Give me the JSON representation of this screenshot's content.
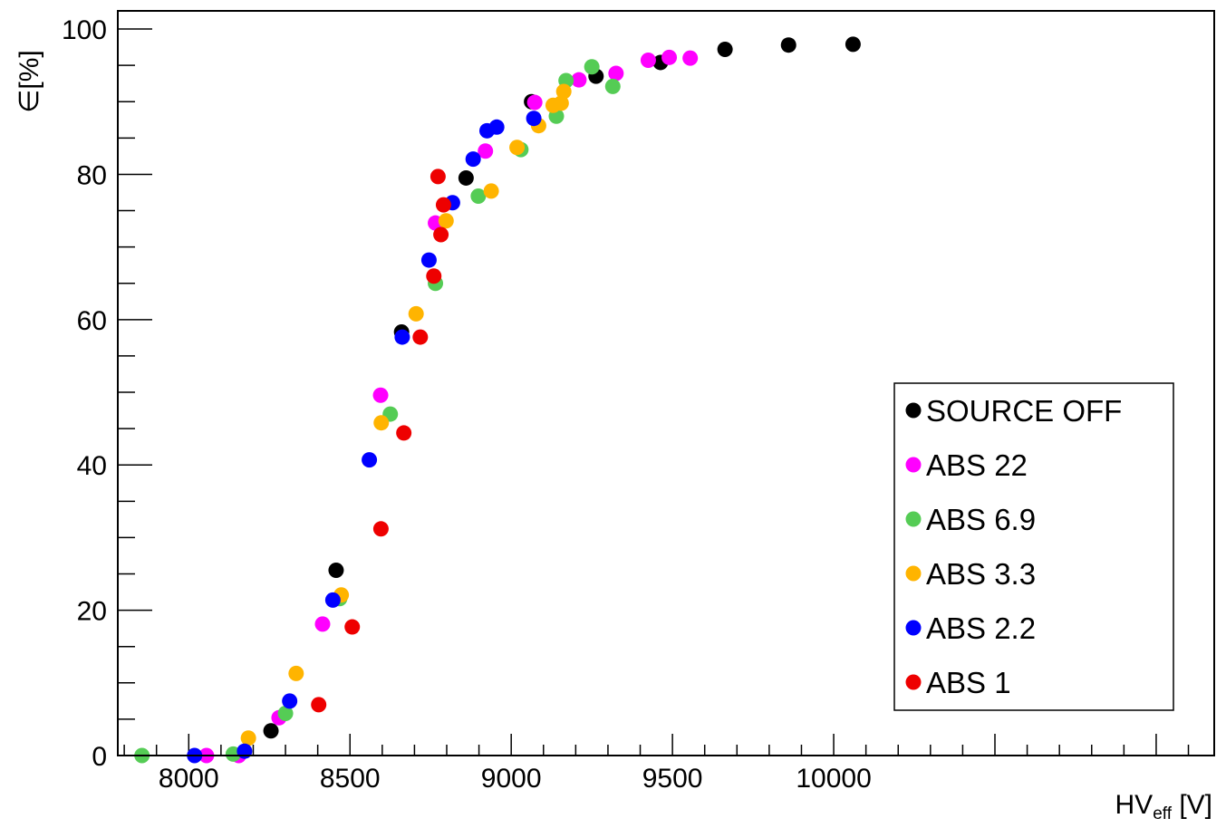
{
  "chart_data": {
    "type": "scatter",
    "title": "",
    "xlabel": "HV",
    "xlabel_sub": "eff",
    "xlabel_unit": " [V]",
    "ylabel": "∈[%]",
    "xlim": [
      7780,
      11180
    ],
    "ylim": [
      0,
      102.5
    ],
    "x_ticks": [
      8000,
      8500,
      9000,
      9500,
      10000
    ],
    "y_ticks": [
      0,
      20,
      40,
      60,
      80,
      100
    ],
    "grid": false,
    "legend_position": "bottom-right",
    "series": [
      {
        "name": "SOURCE OFF",
        "color": "#000000",
        "points": [
          [
            8255,
            3.4
          ],
          [
            8457,
            25.5
          ],
          [
            8660,
            58.3
          ],
          [
            8860,
            79.5
          ],
          [
            9063,
            90.0
          ],
          [
            9263,
            93.5
          ],
          [
            9463,
            95.4
          ],
          [
            9663,
            97.2
          ],
          [
            9860,
            97.8
          ],
          [
            10060,
            97.9
          ]
        ]
      },
      {
        "name": "ABS 22",
        "color": "#ff00ff",
        "points": [
          [
            8055,
            0.0
          ],
          [
            8155,
            0.0
          ],
          [
            8280,
            5.2
          ],
          [
            8415,
            18.1
          ],
          [
            8595,
            49.6
          ],
          [
            8765,
            73.3
          ],
          [
            8920,
            83.2
          ],
          [
            9073,
            89.9
          ],
          [
            9210,
            93.0
          ],
          [
            9325,
            93.9
          ],
          [
            9425,
            95.7
          ],
          [
            9490,
            96.1
          ],
          [
            9555,
            96.0
          ]
        ]
      },
      {
        "name": "ABS 6.9",
        "color": "#55cc55",
        "points": [
          [
            7855,
            0.0
          ],
          [
            8138,
            0.2
          ],
          [
            8300,
            5.8
          ],
          [
            8468,
            21.6
          ],
          [
            8625,
            47.0
          ],
          [
            8765,
            65.0
          ],
          [
            8898,
            77.0
          ],
          [
            9030,
            83.4
          ],
          [
            9140,
            88.0
          ],
          [
            9170,
            92.9
          ],
          [
            9250,
            94.8
          ],
          [
            9315,
            92.1
          ]
        ]
      },
      {
        "name": "ABS 3.3",
        "color": "#ffb400",
        "points": [
          [
            8185,
            2.4
          ],
          [
            8333,
            11.3
          ],
          [
            8473,
            22.1
          ],
          [
            8597,
            45.8
          ],
          [
            8705,
            60.8
          ],
          [
            8798,
            73.6
          ],
          [
            8938,
            77.7
          ],
          [
            9018,
            83.7
          ],
          [
            9085,
            86.7
          ],
          [
            9130,
            89.5
          ],
          [
            9155,
            89.8
          ],
          [
            9163,
            91.4
          ]
        ]
      },
      {
        "name": "ABS 2.2",
        "color": "#0000ff",
        "points": [
          [
            8018,
            0.0
          ],
          [
            8173,
            0.6
          ],
          [
            8313,
            7.5
          ],
          [
            8447,
            21.4
          ],
          [
            8560,
            40.7
          ],
          [
            8662,
            57.6
          ],
          [
            8745,
            68.2
          ],
          [
            8818,
            76.1
          ],
          [
            8882,
            82.1
          ],
          [
            8925,
            86.0
          ],
          [
            8955,
            86.5
          ],
          [
            9070,
            87.7
          ]
        ]
      },
      {
        "name": "ABS 1",
        "color": "#ee0000",
        "points": [
          [
            8403,
            7.0
          ],
          [
            8507,
            17.7
          ],
          [
            8596,
            31.2
          ],
          [
            8667,
            44.4
          ],
          [
            8718,
            57.6
          ],
          [
            8760,
            66.0
          ],
          [
            8773,
            79.7
          ],
          [
            8782,
            71.7
          ],
          [
            8790,
            75.8
          ]
        ]
      }
    ]
  }
}
